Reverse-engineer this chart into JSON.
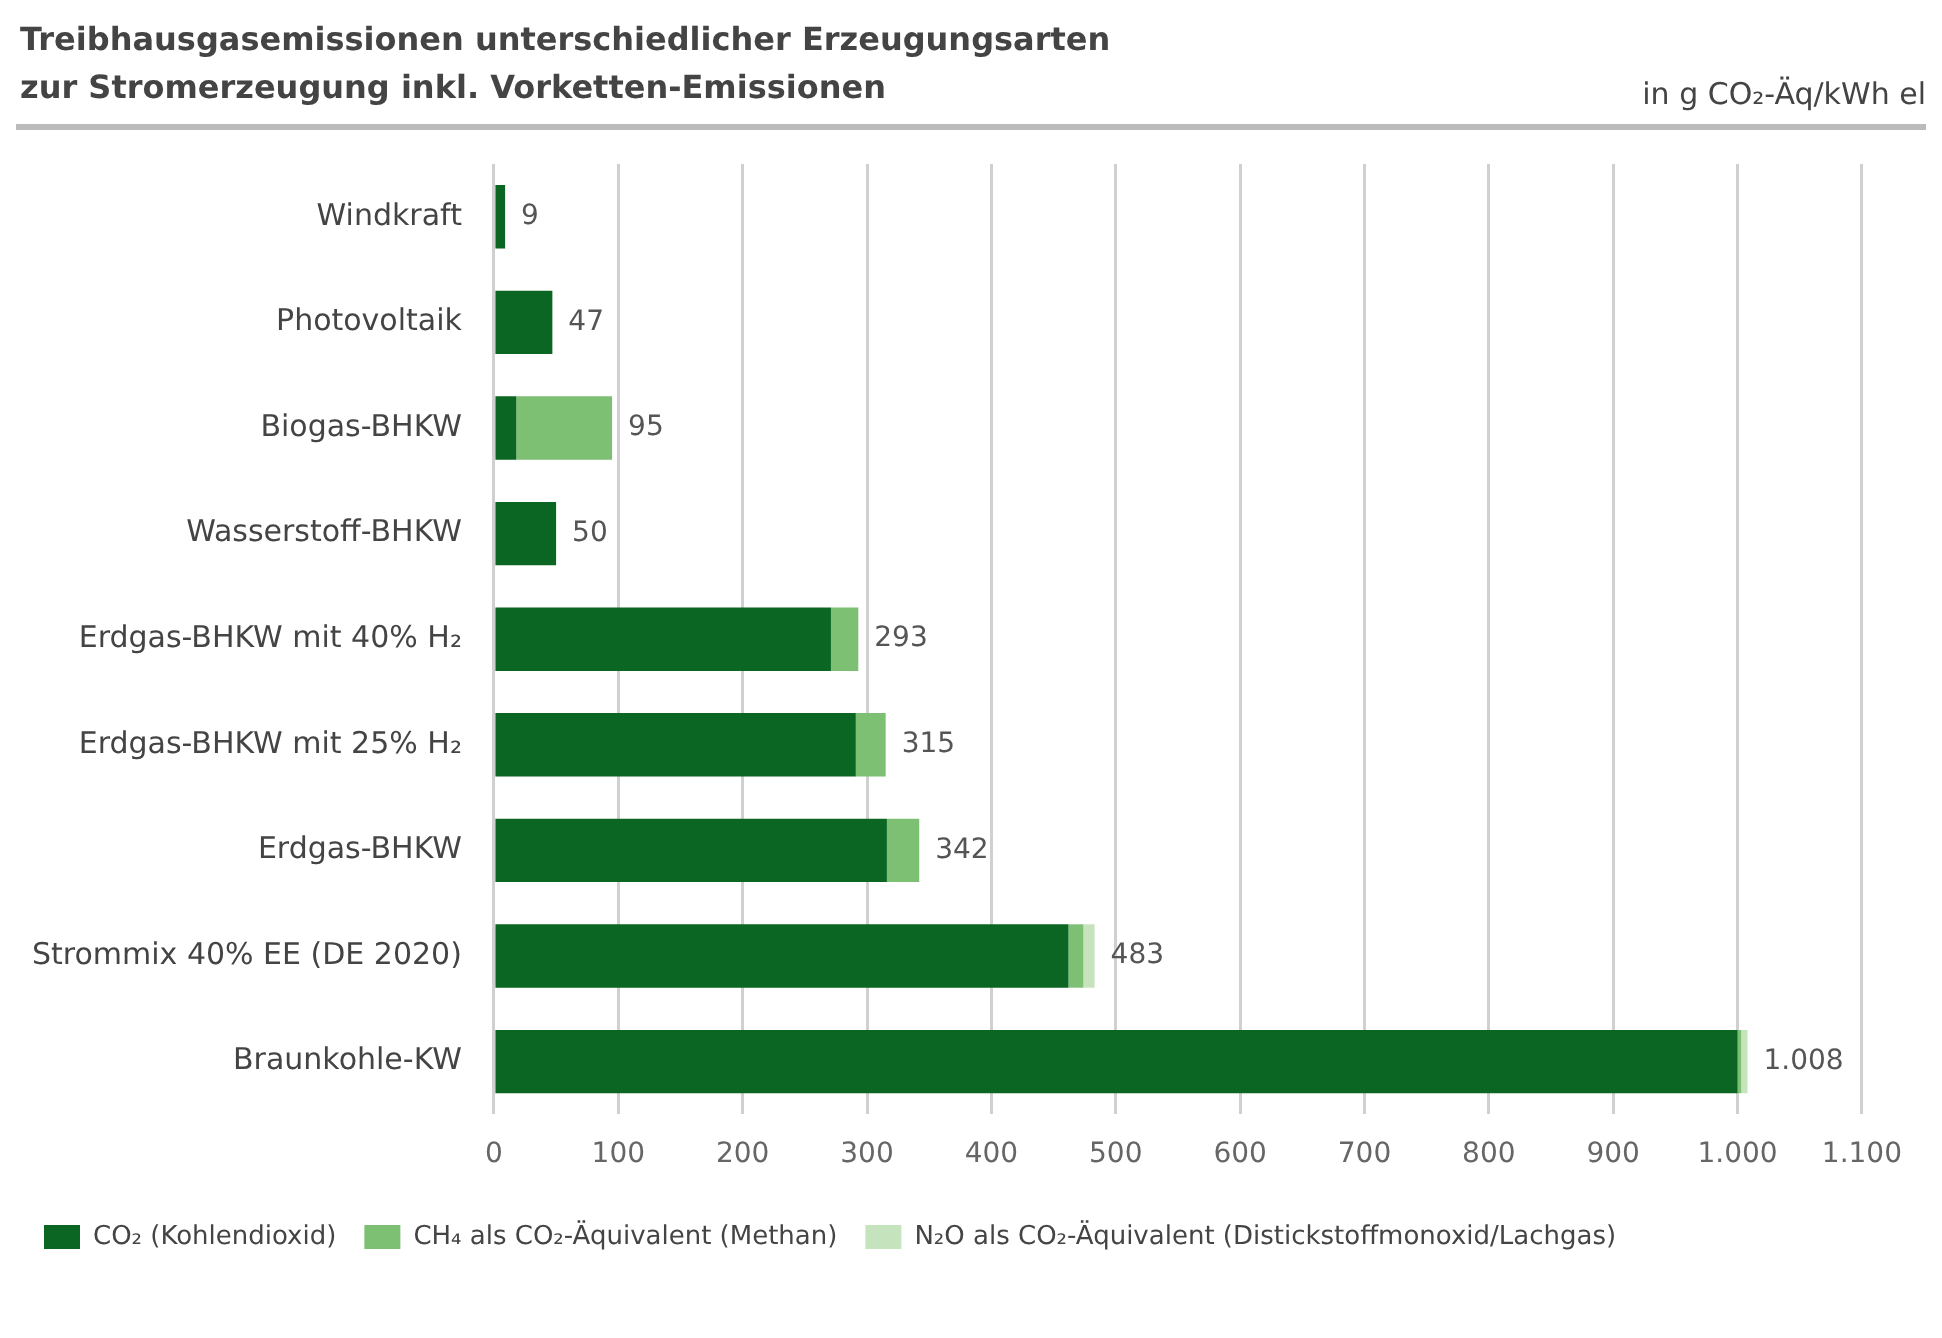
{
  "chart_data": {
    "type": "bar",
    "orientation": "horizontal",
    "stacked": true,
    "title": "Treibhausgasemissionen unterschiedlicher Erzeugungsarten\nzur Stromerzeugung inkl. Vorketten-Emissionen",
    "subtitle": "in g CO₂-Äq/kWh el",
    "categories": [
      "Windkraft",
      "Photovoltaik",
      "Biogas-BHKW",
      "Wasserstoff-BHKW",
      "Erdgas-BHKW mit 40% H₂",
      "Erdgas-BHKW mit 25% H₂",
      "Erdgas-BHKW",
      "Strommix 40% EE (DE 2020)",
      "Braunkohle-KW"
    ],
    "series": [
      {
        "name": "CO₂ (Kohlendioxid)",
        "color": "#0b6623",
        "values": [
          9,
          47,
          18,
          50,
          271,
          291,
          316,
          462,
          1000
        ]
      },
      {
        "name": "CH₄ als CO₂-Äquivalent (Methan)",
        "color": "#7dbf73",
        "values": [
          null,
          null,
          77,
          null,
          22,
          24,
          26,
          12,
          3
        ]
      },
      {
        "name": "N₂O als CO₂-Äquivalent (Distickstoffmonoxid/Lachgas)",
        "color": "#c5e3bd",
        "values": [
          null,
          null,
          null,
          null,
          null,
          null,
          null,
          9,
          5
        ]
      }
    ],
    "totals": [
      "9",
      "47",
      "95",
      "50",
      "293",
      "315",
      "342",
      "483",
      "1.008"
    ],
    "xlim": [
      0,
      1100
    ],
    "xticks": [
      0,
      100,
      200,
      300,
      400,
      500,
      600,
      700,
      800,
      900,
      {
        "value": 1000,
        "label": "1.000"
      },
      {
        "value": 1100,
        "label": "1.100"
      }
    ],
    "grid": "x",
    "legend": "bottom left"
  }
}
